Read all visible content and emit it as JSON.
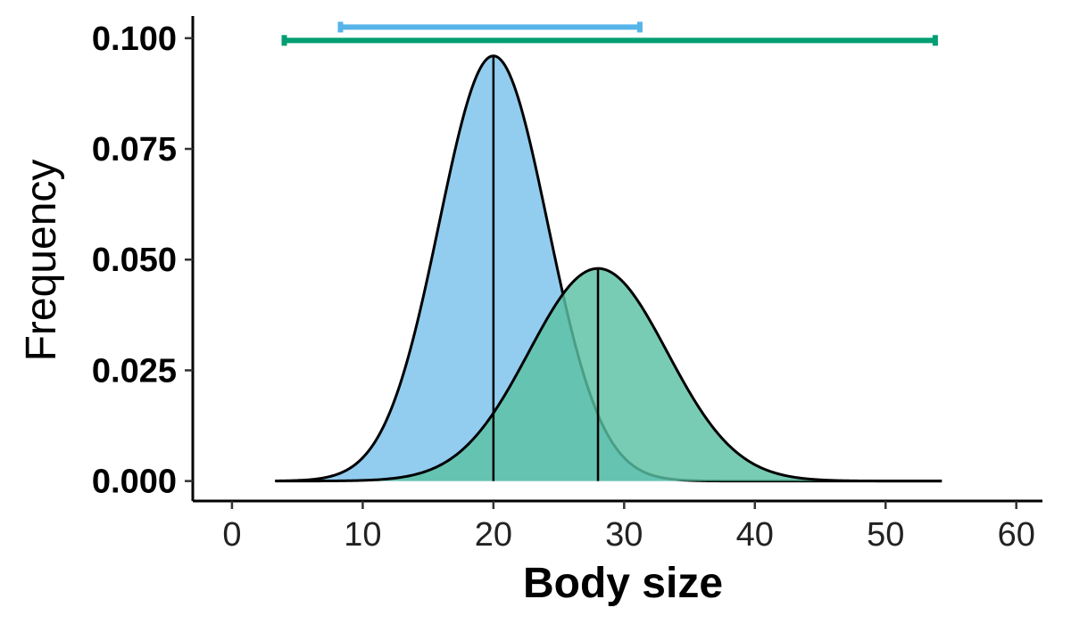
{
  "chart_data": {
    "type": "area",
    "title": "",
    "xlabel": "Body size",
    "ylabel": "Frequency",
    "xlim": [
      -3,
      62
    ],
    "ylim": [
      -0.0045,
      0.105
    ],
    "x_ticks": [
      0,
      10,
      20,
      30,
      40,
      50,
      60
    ],
    "x_tick_labels": [
      "0",
      "10",
      "20",
      "30",
      "40",
      "50",
      "60"
    ],
    "y_ticks": [
      0,
      0.025,
      0.05,
      0.075,
      0.1
    ],
    "y_tick_labels": [
      "0.000",
      "0.025",
      "0.050",
      "0.075",
      "0.100"
    ],
    "grid": false,
    "legend": "none",
    "series": [
      {
        "distribution": "normal",
        "mean": 20,
        "sd": 4.15,
        "peak": 0.096,
        "x_range": [
          3.3,
          54.3
        ],
        "color": "#56B4E9",
        "fill": "#92CDF0",
        "range_bar": [
          8.3,
          31.2
        ]
      },
      {
        "distribution": "normal",
        "mean": 28,
        "sd": 5.3,
        "peak": 0.048,
        "x_range": [
          3.3,
          54.3
        ],
        "color": "#009E73",
        "fill": "#5BC1A3",
        "range_bar": [
          4,
          53.8
        ]
      }
    ],
    "range_bar_y": [
      0.1025,
      0.0995
    ]
  }
}
